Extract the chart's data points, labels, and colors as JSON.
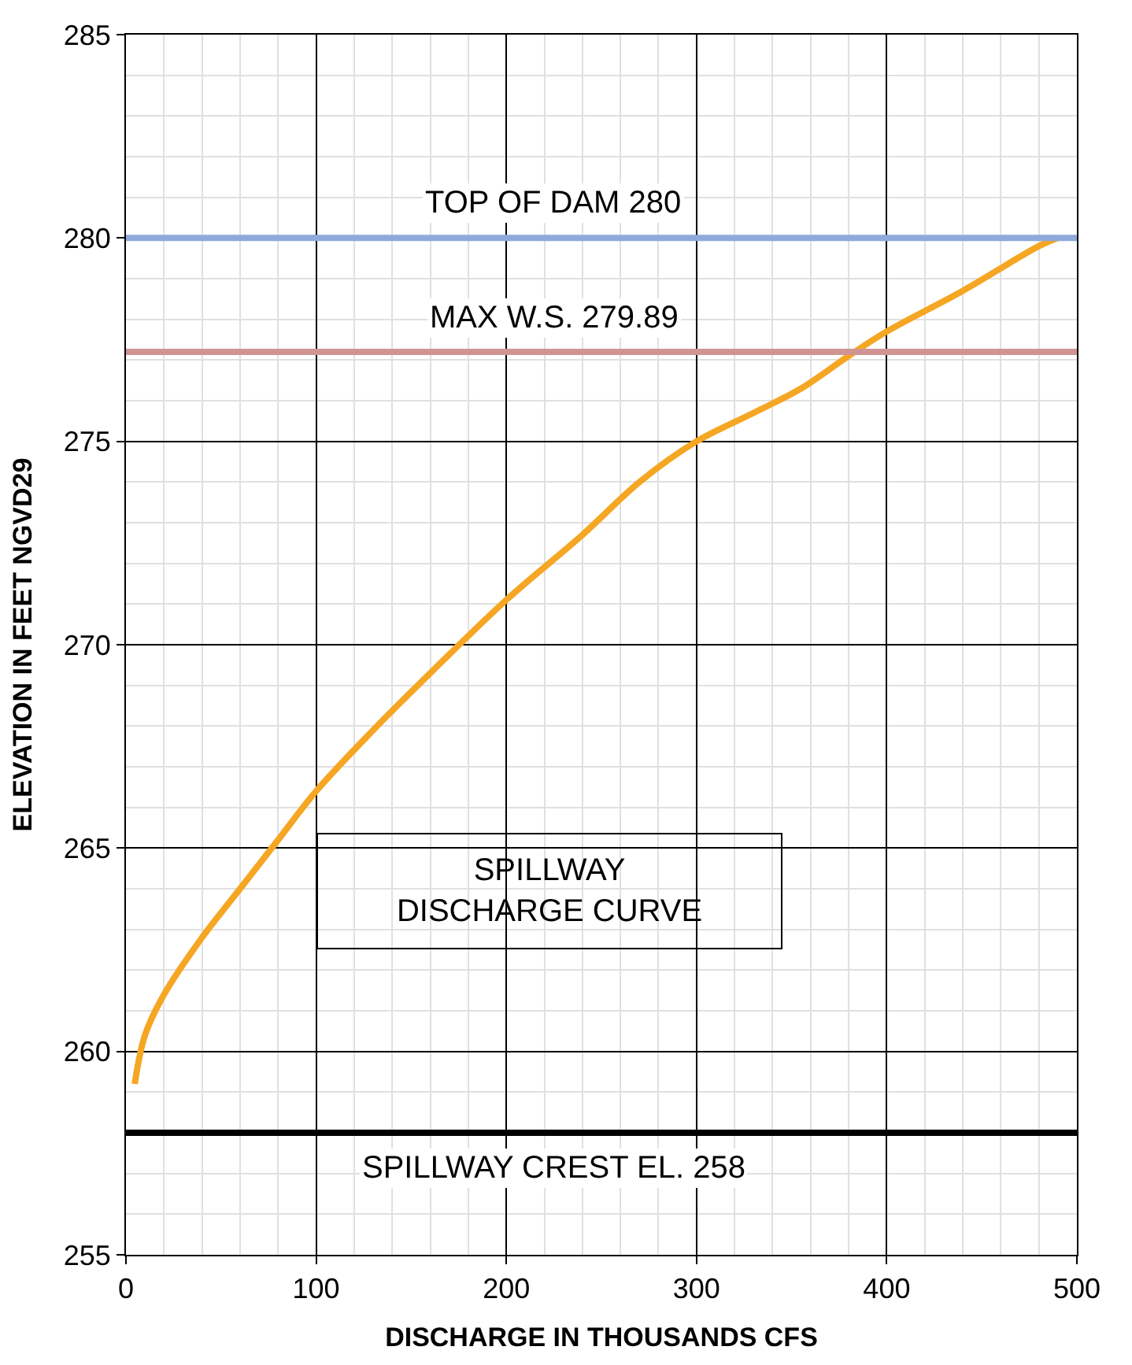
{
  "chart_data": {
    "type": "line",
    "xlabel": "DISCHARGE IN THOUSANDS CFS",
    "ylabel": "ELEVATION IN FEET NGVD29",
    "x": [
      4.6,
      10,
      20,
      40,
      60,
      80,
      100,
      130,
      160,
      200,
      240,
      270,
      300,
      330,
      355,
      380,
      400,
      440,
      480,
      490
    ],
    "series": [
      {
        "color": "#f5a623",
        "values": [
          259.2,
          260.4,
          261.4,
          262.8,
          264.0,
          265.2,
          266.4,
          267.9,
          269.3,
          271.1,
          272.7,
          274.0,
          275.0,
          275.7,
          276.3,
          277.1,
          277.7,
          278.7,
          279.8,
          280.0
        ]
      }
    ],
    "xlim": [
      0,
      500
    ],
    "xticks": [
      0,
      100,
      200,
      300,
      400,
      500
    ],
    "ylim": [
      255,
      285
    ],
    "yticks": [
      255,
      260,
      265,
      270,
      275,
      280,
      285
    ],
    "grid": true,
    "marker": "none",
    "line_style": "solid",
    "ref_lines": [
      {
        "axis": "y",
        "value": 280,
        "label": "TOP OF DAM 280",
        "color": "#8eaadb"
      },
      {
        "axis": "y",
        "value": 277.2,
        "label": "MAX W.S. 279.89",
        "color": "#d09494"
      },
      {
        "axis": "y",
        "value": 258,
        "label": "SPILLWAY CREST EL. 258",
        "color": "#000000"
      }
    ],
    "annotations": [
      "SPILLWAY\nDISCHARGE CURVE"
    ]
  }
}
